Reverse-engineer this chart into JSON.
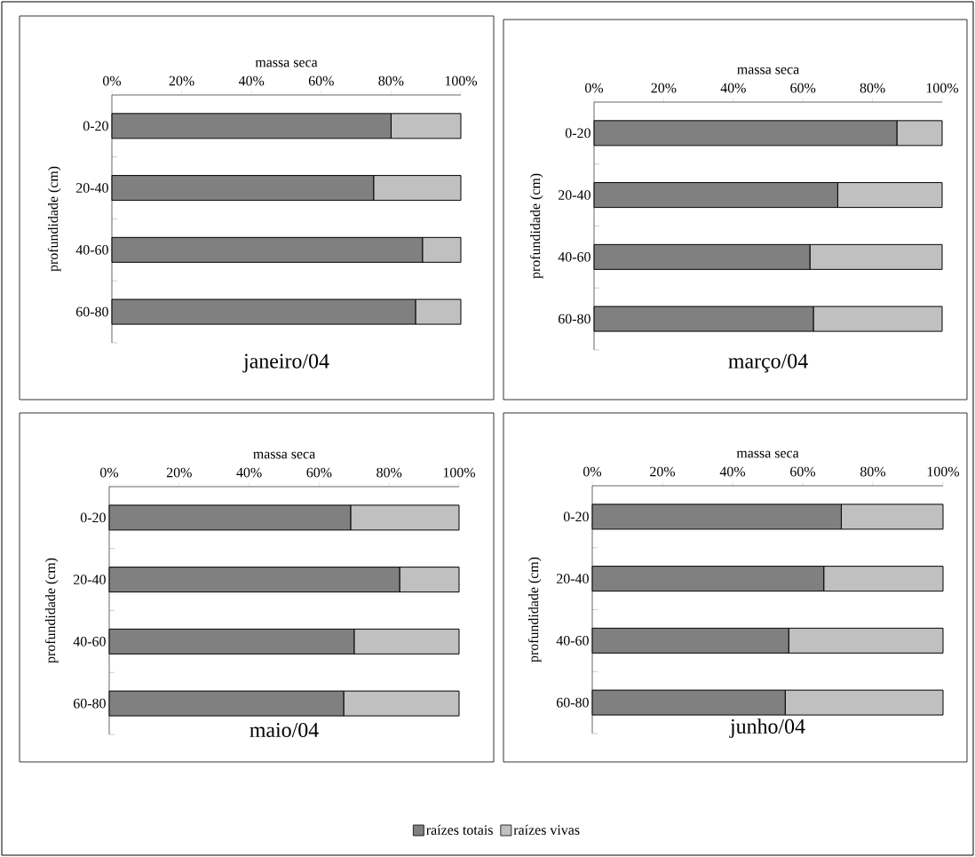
{
  "chart_data": [
    {
      "type": "bar",
      "orientation": "horizontal",
      "stacked": true,
      "title": "janeiro/04",
      "xlabel": "massa seca",
      "ylabel": "profundidade (cm)",
      "categories": [
        "0-20",
        "20-40",
        "40-60",
        "60-80"
      ],
      "xlim": [
        0,
        100
      ],
      "xticks": [
        {
          "value": 0,
          "label": "0%"
        },
        {
          "value": 20,
          "label": "20%"
        },
        {
          "value": 40,
          "label": "40%"
        },
        {
          "value": 60,
          "label": "60%"
        },
        {
          "value": 80,
          "label": "80%"
        },
        {
          "value": 100,
          "label": "100%"
        }
      ],
      "series": [
        {
          "color": "#808080",
          "values": [
            80,
            75,
            89,
            87
          ]
        },
        {
          "color": "#c0c0c0",
          "values": [
            20,
            25,
            11,
            13
          ]
        }
      ]
    },
    {
      "type": "bar",
      "orientation": "horizontal",
      "stacked": true,
      "title": "março/04",
      "xlabel": "massa seca",
      "ylabel": "profundidade (cm)",
      "categories": [
        "0-20",
        "20-40",
        "40-60",
        "60-80"
      ],
      "xlim": [
        0,
        100
      ],
      "xticks": [
        {
          "value": 0,
          "label": "0%"
        },
        {
          "value": 20,
          "label": "20%"
        },
        {
          "value": 40,
          "label": "40%"
        },
        {
          "value": 60,
          "label": "60%"
        },
        {
          "value": 80,
          "label": "80%"
        },
        {
          "value": 100,
          "label": "100%"
        }
      ],
      "series": [
        {
          "color": "#808080",
          "values": [
            87,
            70,
            62,
            63
          ]
        },
        {
          "color": "#c0c0c0",
          "values": [
            13,
            30,
            38,
            37
          ]
        }
      ]
    },
    {
      "type": "bar",
      "orientation": "horizontal",
      "stacked": true,
      "title": "maio/04",
      "xlabel": "massa seca",
      "ylabel": "profundidade (cm)",
      "categories": [
        "0-20",
        "20-40",
        "40-60",
        "60-80"
      ],
      "xlim": [
        0,
        100
      ],
      "xticks": [
        {
          "value": 0,
          "label": "0%"
        },
        {
          "value": 20,
          "label": "20%"
        },
        {
          "value": 40,
          "label": "40%"
        },
        {
          "value": 60,
          "label": "60%"
        },
        {
          "value": 80,
          "label": "80%"
        },
        {
          "value": 100,
          "label": "100%"
        }
      ],
      "series": [
        {
          "color": "#808080",
          "values": [
            69,
            83,
            70,
            67
          ]
        },
        {
          "color": "#c0c0c0",
          "values": [
            31,
            17,
            30,
            33
          ]
        }
      ]
    },
    {
      "type": "bar",
      "orientation": "horizontal",
      "stacked": true,
      "title": "junho/04",
      "xlabel": "massa seca",
      "ylabel": "profundidade (cm)",
      "categories": [
        "0-20",
        "20-40",
        "40-60",
        "60-80"
      ],
      "xlim": [
        0,
        100
      ],
      "xticks": [
        {
          "value": 0,
          "label": "0%"
        },
        {
          "value": 20,
          "label": "20%"
        },
        {
          "value": 40,
          "label": "40%"
        },
        {
          "value": 60,
          "label": "60%"
        },
        {
          "value": 80,
          "label": "80%"
        },
        {
          "value": 100,
          "label": "100%"
        }
      ],
      "legend": "bottom",
      "series": [
        {
          "name": "raízes totais",
          "color": "#808080",
          "values": [
            71,
            66,
            56,
            55
          ]
        },
        {
          "name": "raízes vivas",
          "color": "#c0c0c0",
          "values": [
            29,
            34,
            44,
            45
          ]
        }
      ]
    }
  ]
}
